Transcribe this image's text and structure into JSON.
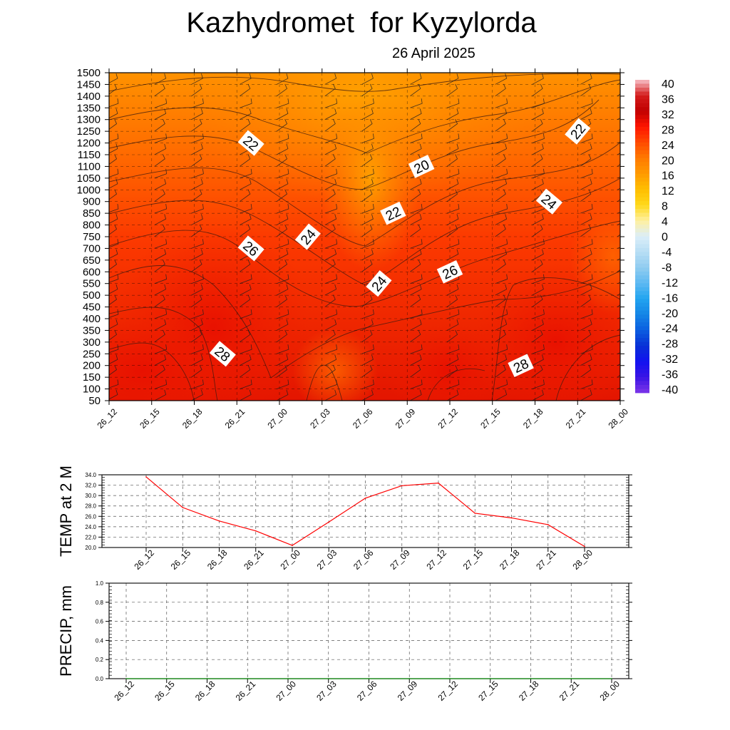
{
  "header": {
    "title": "Kazhydromet  for Kyzylorda",
    "date": "26 April 2025"
  },
  "colorbar": {
    "labels": [
      "40",
      "36",
      "32",
      "28",
      "24",
      "20",
      "16",
      "12",
      "8",
      "4",
      "0",
      "-4",
      "-8",
      "-12",
      "-16",
      "-20",
      "-24",
      "-28",
      "-32",
      "-36",
      "-40"
    ]
  },
  "chart_data": [
    {
      "type": "heatmap",
      "description_key": "temperature cross-section with contour lines and wind barbs",
      "x_ticks": [
        "26_12",
        "26_15",
        "26_18",
        "26_21",
        "27_00",
        "27_03",
        "27_06",
        "27_09",
        "27_12",
        "27_15",
        "27_18",
        "27_21",
        "28_00"
      ],
      "y_ticks": [
        "1500",
        "1450",
        "1400",
        "1350",
        "1300",
        "1250",
        "1200",
        "1150",
        "1100",
        "1050",
        "1000",
        "900",
        "850",
        "800",
        "750",
        "700",
        "650",
        "600",
        "550",
        "500",
        "450",
        "400",
        "350",
        "300",
        "250",
        "200",
        "150",
        "100",
        "50"
      ],
      "color_range": [
        -40,
        40
      ],
      "contour_labels": [
        {
          "value": "22",
          "time": "26_22",
          "level": "1200"
        },
        {
          "value": "20",
          "time": "27_10",
          "level": "1100"
        },
        {
          "value": "22",
          "time": "27_21",
          "level": "1250"
        },
        {
          "value": "24",
          "time": "27_19",
          "level": "900"
        },
        {
          "value": "22",
          "time": "27_08",
          "level": "850"
        },
        {
          "value": "24",
          "time": "27_02",
          "level": "750"
        },
        {
          "value": "26",
          "time": "26_22",
          "level": "700"
        },
        {
          "value": "26",
          "time": "27_12",
          "level": "600"
        },
        {
          "value": "24",
          "time": "27_07",
          "level": "550"
        },
        {
          "value": "28",
          "time": "26_20",
          "level": "250"
        },
        {
          "value": "28",
          "time": "27_17",
          "level": "200"
        }
      ],
      "grid": true
    },
    {
      "type": "line",
      "ylabel": "TEMP at 2 M",
      "x": [
        "26_12",
        "26_15",
        "26_18",
        "26_21",
        "27_00",
        "27_03",
        "27_06",
        "27_09",
        "27_12",
        "27_15",
        "27_18",
        "27_21",
        "28_00"
      ],
      "y_ticks": [
        "34.0",
        "32.0",
        "30.0",
        "28.0",
        "26.0",
        "24.0",
        "22.0",
        "20.0"
      ],
      "ylim": [
        20,
        34
      ],
      "series": [
        {
          "values": [
            33.6,
            27.7,
            25.1,
            23.2,
            20.4,
            24.9,
            29.5,
            31.9,
            32.4,
            26.6,
            25.7,
            24.4,
            20.2
          ],
          "color": "#ff0000"
        }
      ],
      "grid": true
    },
    {
      "type": "line",
      "ylabel": "PRECIP, mm",
      "x": [
        "26_12",
        "26_15",
        "26_18",
        "26_21",
        "27_00",
        "27_03",
        "27_06",
        "27_09",
        "27_12",
        "27_15",
        "27_18",
        "27_21",
        "28_00"
      ],
      "y_ticks": [
        "1.0",
        "0.8",
        "0.6",
        "0.4",
        "0.2",
        "0.0"
      ],
      "ylim": [
        0,
        1
      ],
      "series": [
        {
          "values": [
            0,
            0,
            0,
            0,
            0,
            0,
            0,
            0,
            0,
            0,
            0,
            0,
            0
          ],
          "color": "#008000"
        }
      ],
      "grid": true
    }
  ]
}
